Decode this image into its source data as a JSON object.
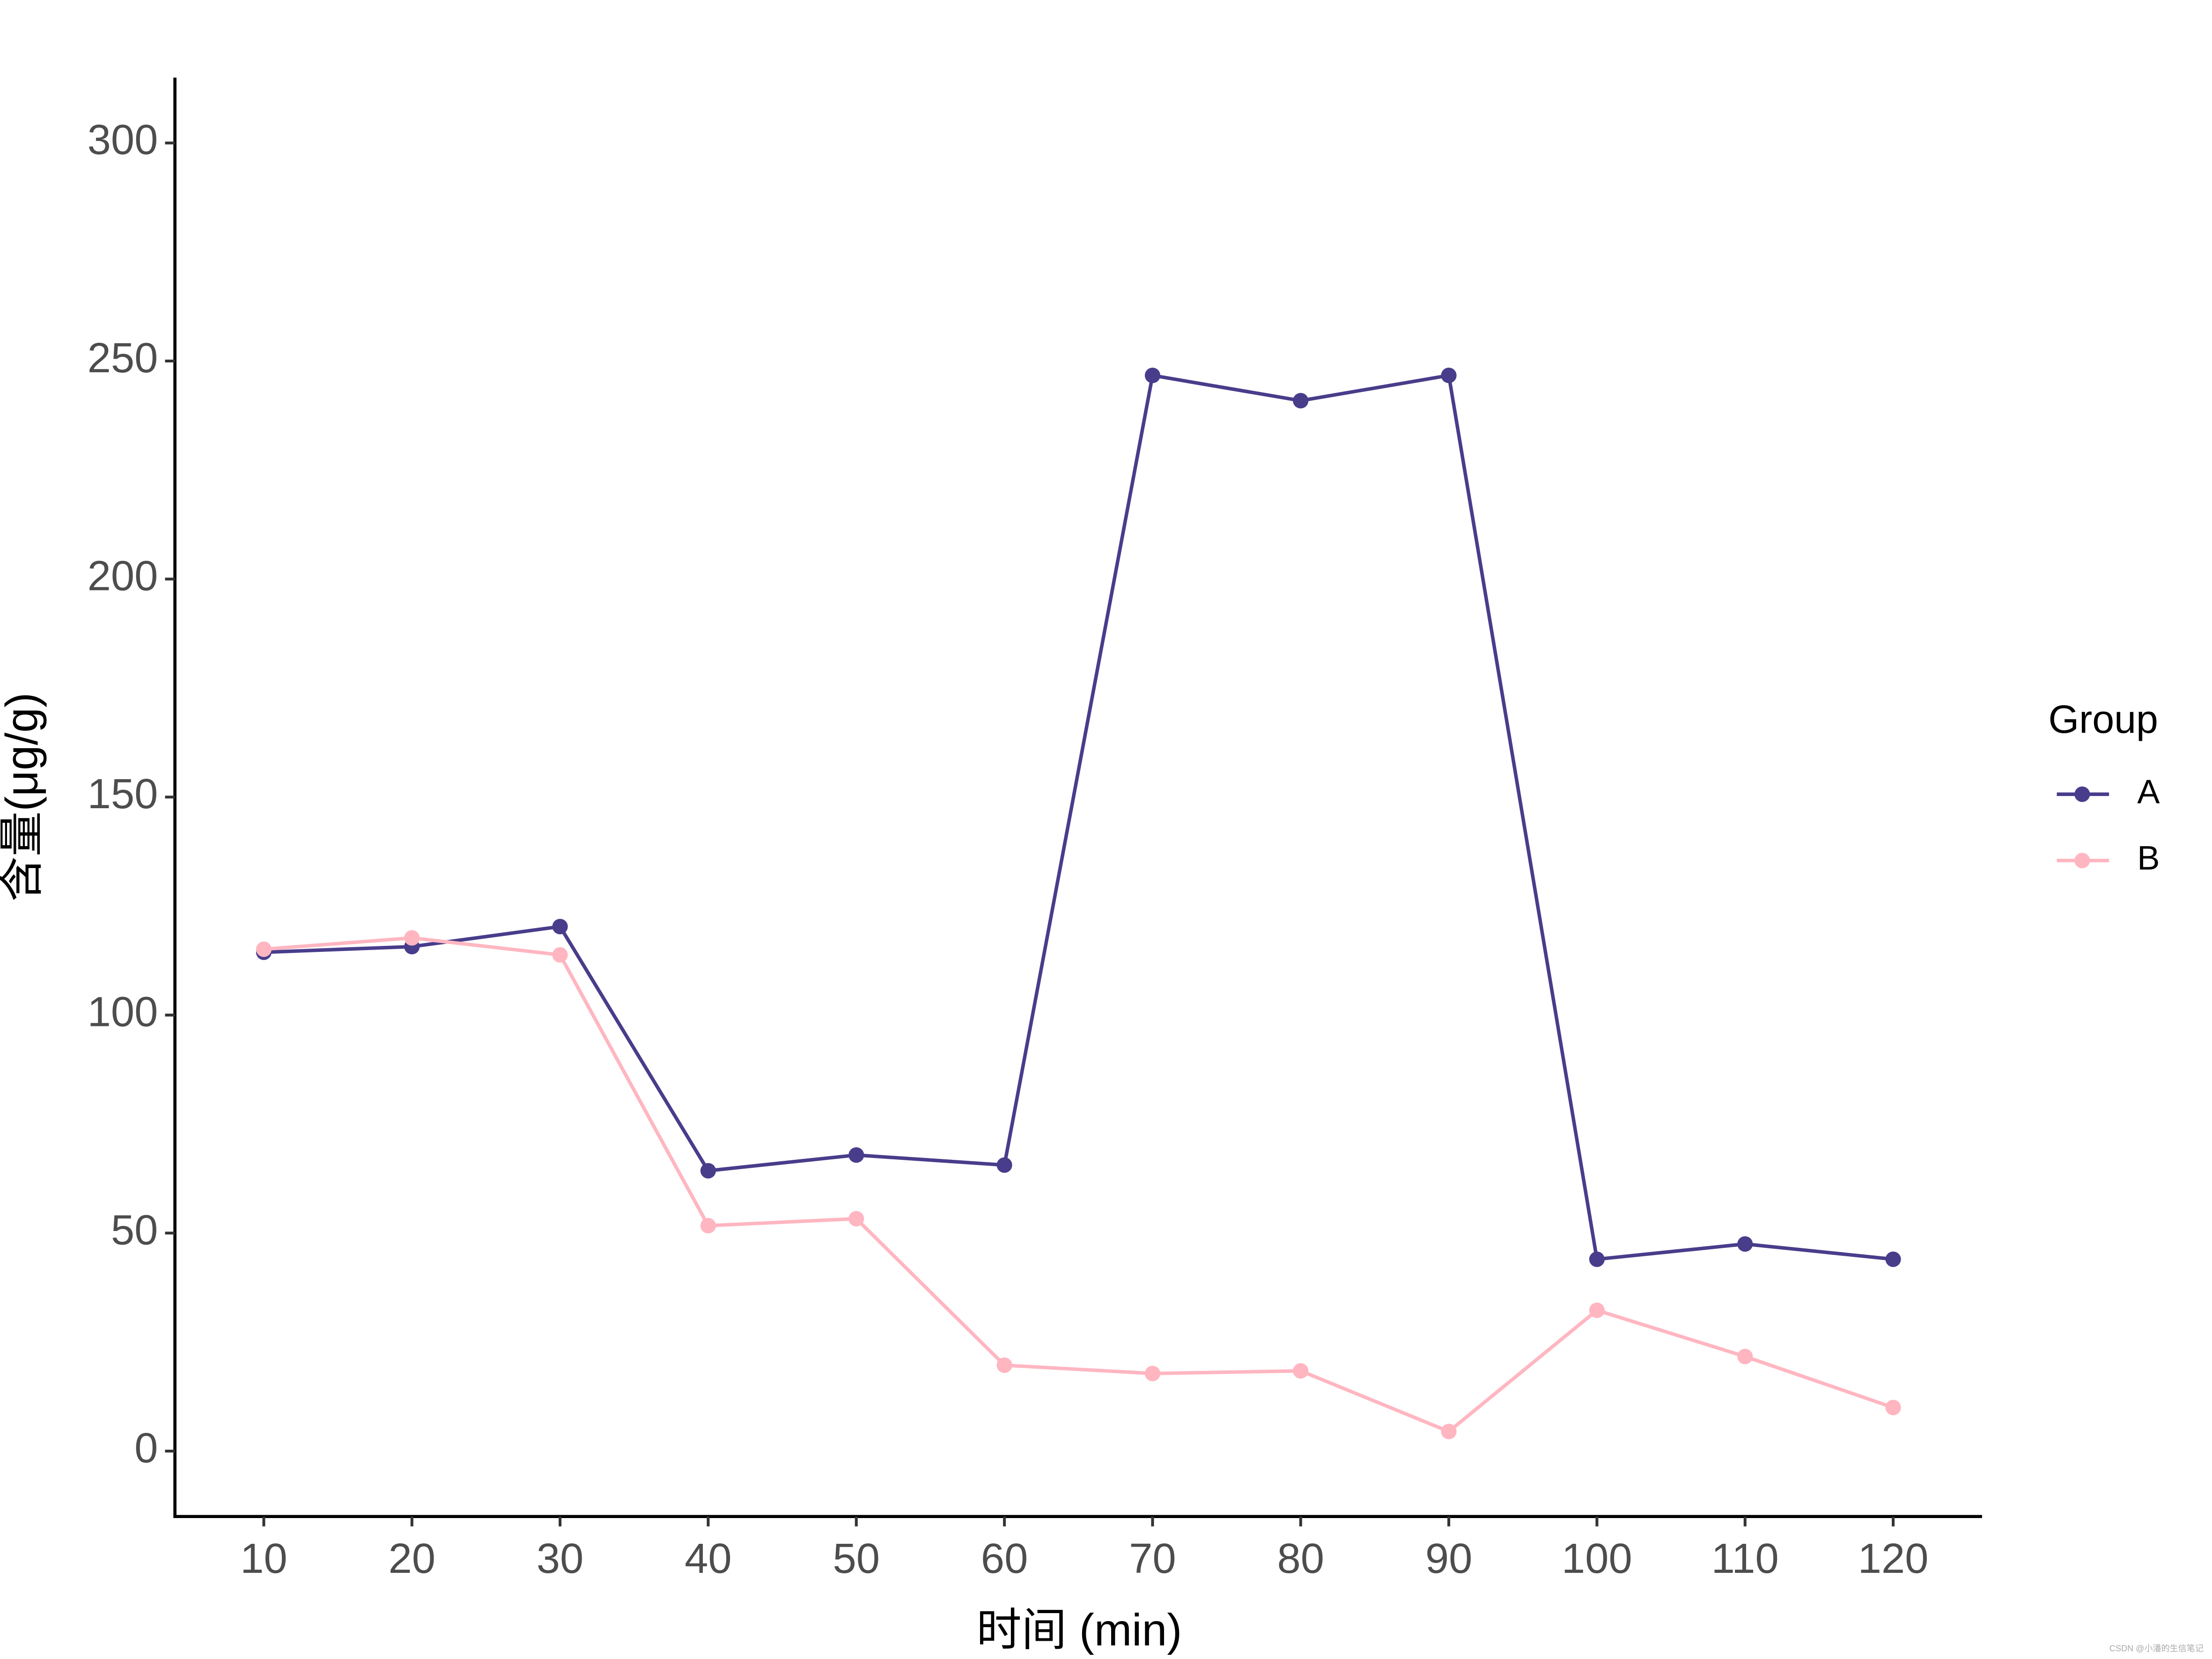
{
  "chart_data": {
    "type": "line",
    "x_label": "时间 (min)",
    "y_label": "含量(μg/g)",
    "legend_title": "Group",
    "legend_position": "right",
    "grid": false,
    "x": [
      10,
      20,
      30,
      40,
      50,
      60,
      70,
      80,
      90,
      100,
      110,
      120
    ],
    "series": [
      {
        "name": "A",
        "color": "#483d8b",
        "values": [
          114.4,
          115.7,
          120.3,
          64.3,
          67.9,
          65.6,
          246.7,
          240.9,
          246.7,
          44.0,
          47.5,
          44.0
        ]
      },
      {
        "name": "B",
        "color": "#ffb6c1",
        "values": [
          115.1,
          117.7,
          113.8,
          51.7,
          53.3,
          19.7,
          17.8,
          18.4,
          4.5,
          32.3,
          21.7,
          10.0
        ]
      }
    ],
    "xlim": [
      4,
      126
    ],
    "ylim": [
      -15,
      315
    ],
    "xticks": [
      10,
      20,
      30,
      40,
      50,
      60,
      70,
      80,
      90,
      100,
      110,
      120
    ],
    "yticks": [
      0,
      50,
      100,
      150,
      200,
      250,
      300
    ],
    "watermark": "CSDN @小潘的生信笔记"
  }
}
